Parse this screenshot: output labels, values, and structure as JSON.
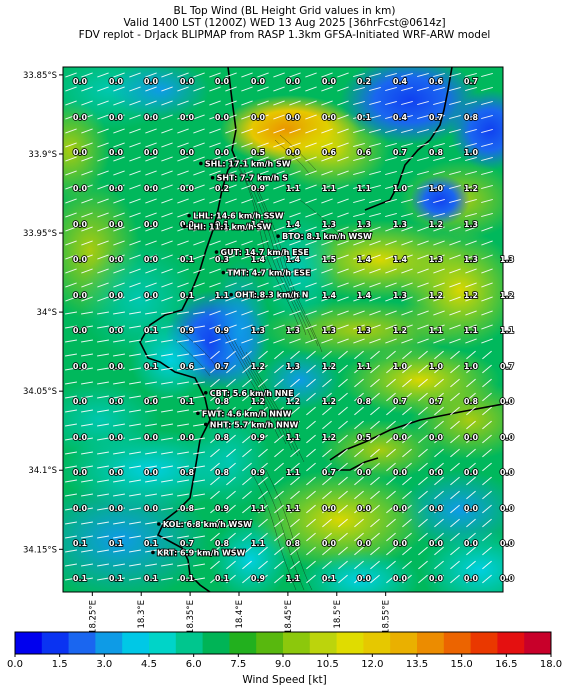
{
  "header": {
    "line1": "BL Top Wind (BL Height Grid values in km)",
    "line2": "Valid 1400 LST (1200Z) WED 13 Aug 2025 [36hrFcst@0614z]",
    "line3": "FDV replot - DrJack BLIPMAP from RASP 1.3km GFSA-Initiated WRF-ARW model"
  },
  "map": {
    "lat_range": [
      34.177,
      33.845
    ],
    "lon_range": [
      18.22,
      18.67
    ],
    "lat_ticks": [
      {
        "value": 33.85,
        "label": "33.85°S"
      },
      {
        "value": 33.9,
        "label": "33.9°S"
      },
      {
        "value": 33.95,
        "label": "33.95°S"
      },
      {
        "value": 34.0,
        "label": "34°S"
      },
      {
        "value": 34.05,
        "label": "34.05°S"
      },
      {
        "value": 34.1,
        "label": "34.1°S"
      },
      {
        "value": 34.15,
        "label": "34.15°S"
      }
    ],
    "lon_ticks": [
      {
        "value": 18.25,
        "label": "18.25°E"
      },
      {
        "value": 18.3,
        "label": "18.3°E"
      },
      {
        "value": 18.35,
        "label": "18.35°E"
      },
      {
        "value": 18.4,
        "label": "18.4°E"
      },
      {
        "value": 18.45,
        "label": "18.45°E"
      },
      {
        "value": 18.5,
        "label": "18.5°E"
      },
      {
        "value": 18.55,
        "label": "18.55°E"
      }
    ],
    "grid_values": [
      [
        "0.0",
        "0.0",
        "0.0",
        "0.0",
        "0.0",
        "0.0",
        "0.0",
        "0.0",
        "0.2",
        "0.4",
        "0.6",
        "0.7",
        ""
      ],
      [
        "0.0",
        "0.0",
        "0.0",
        "0.0",
        "0.0",
        "0.0",
        "0.0",
        "0.0",
        "0.1",
        "0.4",
        "0.7",
        "0.8",
        ""
      ],
      [
        "0.0",
        "0.0",
        "0.0",
        "0.0",
        "0.0",
        "0.5",
        "0.0",
        "0.6",
        "0.6",
        "0.7",
        "0.8",
        "1.0",
        ""
      ],
      [
        "0.0",
        "0.0",
        "0.0",
        "0.0",
        "0.2",
        "0.9",
        "1.1",
        "1.1",
        "1.1",
        "1.0",
        "1.0",
        "1.2",
        ""
      ],
      [
        "0.0",
        "0.0",
        "0.0",
        "0.0",
        "0.1",
        "1.1",
        "1.4",
        "1.3",
        "1.3",
        "1.3",
        "1.2",
        "1.3",
        ""
      ],
      [
        "0.0",
        "0.0",
        "0.0",
        "0.1",
        "0.3",
        "1.4",
        "1.4",
        "1.5",
        "1.4",
        "1.4",
        "1.3",
        "1.3",
        "1.3"
      ],
      [
        "0.0",
        "0.0",
        "0.0",
        "0.1",
        "1.1",
        "1.1",
        "1.4",
        "1.4",
        "1.4",
        "1.3",
        "1.2",
        "1.2",
        "1.2"
      ],
      [
        "0.0",
        "0.0",
        "0.1",
        "0.9",
        "0.9",
        "1.3",
        "1.3",
        "1.3",
        "1.3",
        "1.2",
        "1.1",
        "1.1",
        "1.1"
      ],
      [
        "0.0",
        "0.0",
        "0.1",
        "0.6",
        "0.7",
        "1.2",
        "1.3",
        "1.2",
        "1.1",
        "1.0",
        "1.0",
        "1.0",
        "0.7"
      ],
      [
        "0.0",
        "0.0",
        "0.0",
        "0.1",
        "0.8",
        "1.2",
        "1.2",
        "1.2",
        "0.8",
        "0.7",
        "0.7",
        "0.8",
        "0.0"
      ],
      [
        "0.0",
        "0.0",
        "0.0",
        "0.0",
        "0.8",
        "0.9",
        "1.1",
        "1.2",
        "0.5",
        "0.0",
        "0.0",
        "0.0",
        "0.0"
      ],
      [
        "0.0",
        "0.0",
        "0.0",
        "0.8",
        "0.8",
        "0.9",
        "1.1",
        "0.7",
        "0.0",
        "0.0",
        "0.0",
        "0.0",
        "0.0"
      ],
      [
        "0.0",
        "0.0",
        "0.0",
        "0.8",
        "0.9",
        "1.1",
        "1.1",
        "0.0",
        "0.0",
        "0.0",
        "0.0",
        "0.0",
        "0.0"
      ],
      [
        "0.1",
        "0.1",
        "0.1",
        "0.7",
        "0.8",
        "1.1",
        "0.8",
        "0.0",
        "0.0",
        "0.0",
        "0.0",
        "0.0",
        "0.0"
      ],
      [
        "0.1",
        "0.1",
        "0.1",
        "0.1",
        "0.1",
        "0.9",
        "1.1",
        "0.1",
        "0.0",
        "0.0",
        "0.0",
        "0.0",
        "0.0"
      ]
    ],
    "stations": [
      {
        "text": "SHL: 17.1 km/h SW",
        "lat": 33.906,
        "lon": 18.361
      },
      {
        "text": "SHT: 7.7 km/h S",
        "lat": 33.915,
        "lon": 18.373
      },
      {
        "text": "LHL: 14.6 km/h SSW",
        "lat": 33.939,
        "lon": 18.349
      },
      {
        "text": "LHI: 11.1 km/h SW",
        "lat": 33.946,
        "lon": 18.344
      },
      {
        "text": "BTO: 8.1 km/h WSW",
        "lat": 33.952,
        "lon": 18.44
      },
      {
        "text": "GUT: 14.7 km/h ESE",
        "lat": 33.962,
        "lon": 18.377
      },
      {
        "text": "TMT: 4.7 km/h ESE",
        "lat": 33.975,
        "lon": 18.384
      },
      {
        "text": "OHT: 8.3 km/h N",
        "lat": 33.989,
        "lon": 18.392
      },
      {
        "text": "CBT: 5.6 km/h NNE",
        "lat": 34.051,
        "lon": 18.366
      },
      {
        "text": "FWT: 4.6 km/h NNW",
        "lat": 34.064,
        "lon": 18.358
      },
      {
        "text": "NHT: 5.7 km/h NNW",
        "lat": 34.071,
        "lon": 18.366
      },
      {
        "text": "KOL: 6.8 km/h WSW",
        "lat": 34.134,
        "lon": 18.318
      },
      {
        "text": "KRT: 6.9 km/h WSW",
        "lat": 34.152,
        "lon": 18.312
      }
    ]
  },
  "colorbar": {
    "label": "Wind Speed [kt]",
    "min": 0,
    "max": 18,
    "colors": [
      "#0000ee",
      "#0a33f2",
      "#1a66f0",
      "#0e9be6",
      "#00c8e6",
      "#00d4c8",
      "#00c68e",
      "#00b456",
      "#22b01e",
      "#58b80e",
      "#8cc80c",
      "#bcd40c",
      "#e0dc00",
      "#e6c800",
      "#eab000",
      "#ec8c00",
      "#ec6400",
      "#ea3800",
      "#e41010",
      "#c8002a"
    ],
    "ticks": [
      "0.0",
      "1.5",
      "3.0",
      "4.5",
      "6.0",
      "7.5",
      "9.0",
      "10.5",
      "12.0",
      "13.5",
      "15.0",
      "16.5",
      "18.0"
    ]
  }
}
